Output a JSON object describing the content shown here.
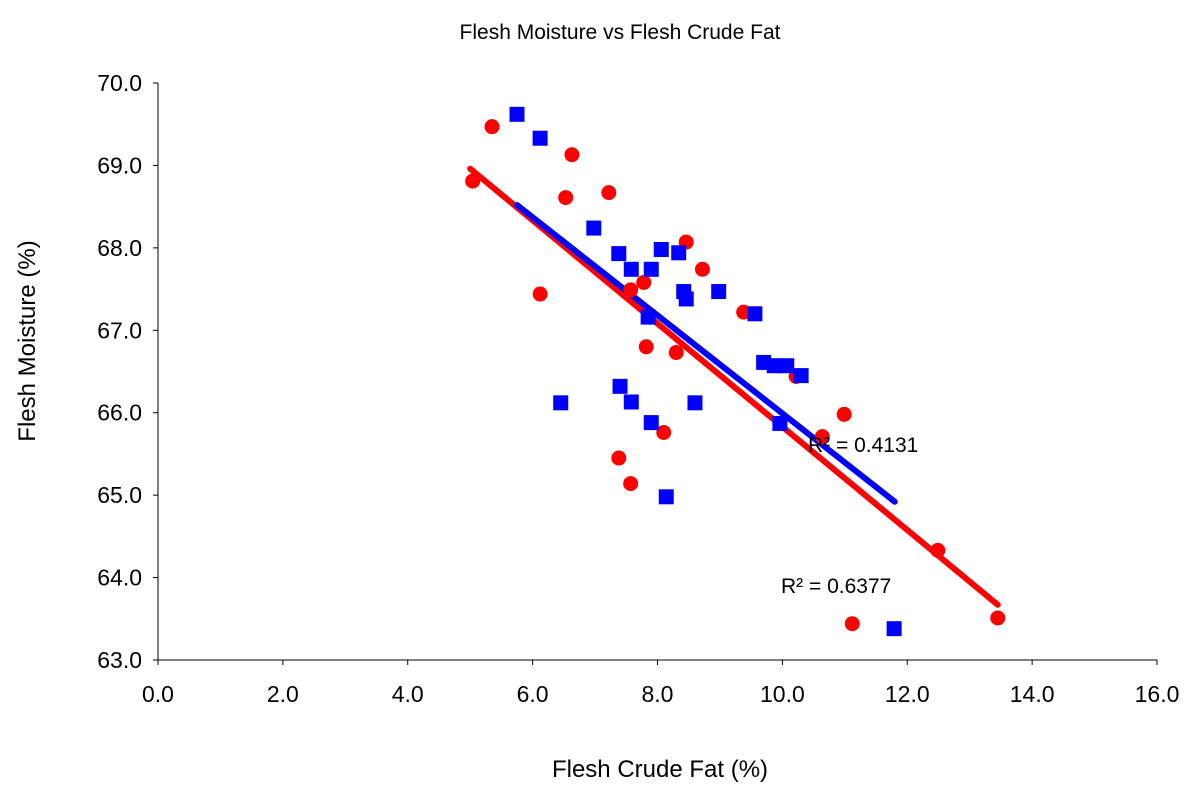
{
  "chart_data": {
    "type": "scatter",
    "title": "Flesh Moisture vs Flesh Crude Fat",
    "xlabel": "Flesh Crude Fat (%)",
    "ylabel": "Flesh Moisture (%)",
    "xlim": [
      0,
      16
    ],
    "ylim": [
      63,
      70
    ],
    "x_ticks": [
      "0.0",
      "2.0",
      "4.0",
      "6.0",
      "8.0",
      "10.0",
      "12.0",
      "14.0",
      "16.0"
    ],
    "y_ticks": [
      "63.0",
      "64.0",
      "65.0",
      "66.0",
      "67.0",
      "68.0",
      "69.0",
      "70.0"
    ],
    "grid": false,
    "series": [
      {
        "marker": "square",
        "color": "#0000FF",
        "points": [
          [
            5.75,
            69.62
          ],
          [
            6.12,
            69.33
          ],
          [
            6.45,
            66.12
          ],
          [
            6.98,
            68.24
          ],
          [
            7.38,
            67.93
          ],
          [
            7.4,
            66.32
          ],
          [
            7.58,
            67.74
          ],
          [
            7.58,
            66.13
          ],
          [
            7.85,
            67.16
          ],
          [
            7.9,
            67.74
          ],
          [
            7.9,
            65.88
          ],
          [
            8.06,
            67.98
          ],
          [
            8.14,
            64.98
          ],
          [
            8.34,
            67.94
          ],
          [
            8.42,
            67.47
          ],
          [
            8.46,
            67.38
          ],
          [
            8.6,
            66.12
          ],
          [
            8.98,
            67.47
          ],
          [
            9.56,
            67.2
          ],
          [
            9.7,
            66.61
          ],
          [
            9.87,
            66.57
          ],
          [
            9.96,
            65.87
          ],
          [
            10.07,
            66.57
          ],
          [
            10.3,
            66.45
          ],
          [
            11.79,
            63.38
          ]
        ],
        "trendline": {
          "x": [
            5.75,
            11.8
          ],
          "y": [
            68.52,
            64.92
          ],
          "r2_label": "R² = 0.4131"
        }
      },
      {
        "marker": "circle",
        "color": "#FF0000",
        "points": [
          [
            5.04,
            68.81
          ],
          [
            5.35,
            69.47
          ],
          [
            6.12,
            67.44
          ],
          [
            6.53,
            68.61
          ],
          [
            6.63,
            69.13
          ],
          [
            7.22,
            68.67
          ],
          [
            7.38,
            65.45
          ],
          [
            7.57,
            65.14
          ],
          [
            7.57,
            67.49
          ],
          [
            7.78,
            67.58
          ],
          [
            7.82,
            66.8
          ],
          [
            8.1,
            65.76
          ],
          [
            8.3,
            66.73
          ],
          [
            8.46,
            68.07
          ],
          [
            8.72,
            67.74
          ],
          [
            9.38,
            67.22
          ],
          [
            10.22,
            66.44
          ],
          [
            10.64,
            65.71
          ],
          [
            10.99,
            65.98
          ],
          [
            11.12,
            63.44
          ],
          [
            12.49,
            64.33
          ],
          [
            13.45,
            63.51
          ]
        ],
        "trendline": {
          "x": [
            5.0,
            13.45
          ],
          "y": [
            68.96,
            63.67
          ],
          "r2_label": "R² = 0.6377"
        }
      }
    ]
  }
}
